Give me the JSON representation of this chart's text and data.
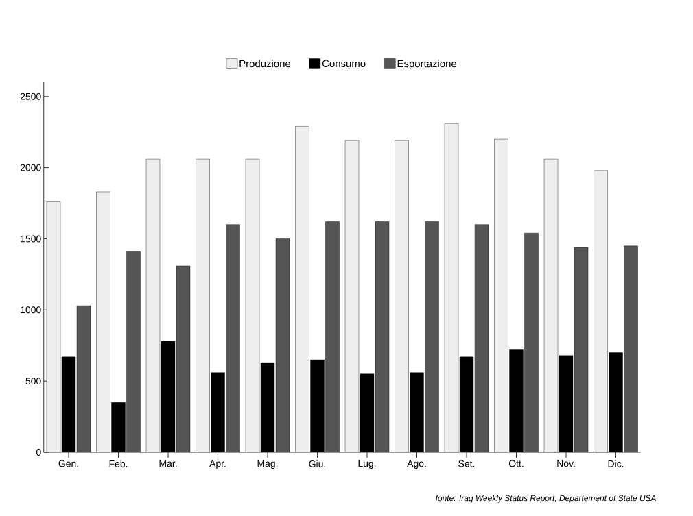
{
  "chart_data": {
    "type": "bar",
    "categories": [
      "Gen.",
      "Feb.",
      "Mar.",
      "Apr.",
      "Mag.",
      "Giu.",
      "Lug.",
      "Ago.",
      "Set.",
      "Ott.",
      "Nov.",
      "Dic."
    ],
    "series": [
      {
        "name": "Produzione",
        "color": "#eeeeee",
        "values": [
          1760,
          1830,
          2060,
          2060,
          2060,
          2290,
          2190,
          2190,
          2310,
          2200,
          2060,
          1980
        ]
      },
      {
        "name": "Consumo",
        "color": "#000000",
        "values": [
          670,
          350,
          780,
          560,
          630,
          650,
          550,
          560,
          670,
          720,
          680,
          700
        ]
      },
      {
        "name": "Esportazione",
        "color": "#555555",
        "values": [
          1030,
          1410,
          1310,
          1600,
          1500,
          1620,
          1620,
          1620,
          1600,
          1540,
          1440,
          1450
        ]
      }
    ],
    "ylim": [
      0,
      2600
    ],
    "yticks": [
      0,
      500,
      1000,
      1500,
      2000,
      2500
    ],
    "legend": "top",
    "annotations": [
      "fonte: Iraq Weekly Status Report, Departement of State USA"
    ]
  }
}
